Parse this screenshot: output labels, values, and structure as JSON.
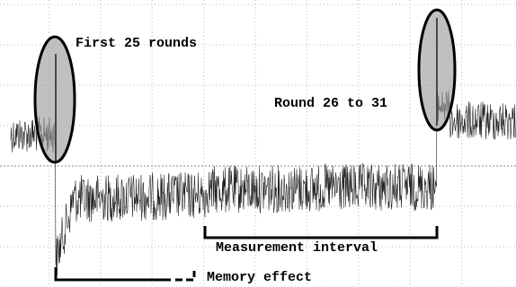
{
  "annotations": [
    "First 25 rounds",
    "Round 26 to 31",
    "Measurement interval",
    "Memory effect"
  ]
}
